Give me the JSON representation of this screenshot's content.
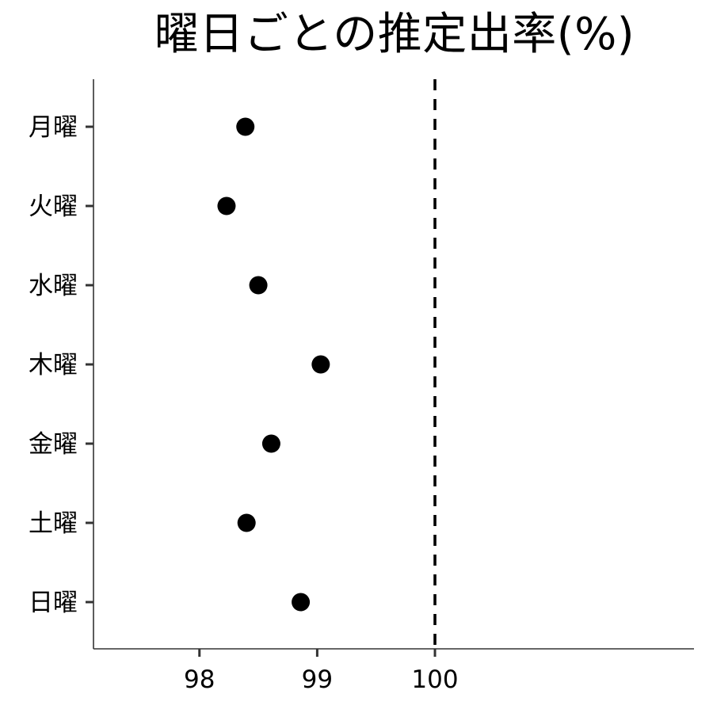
{
  "chart_data": {
    "type": "scatter",
    "title": "曜日ごとの推定出率(%)",
    "xlabel": "",
    "ylabel": "",
    "categories": [
      "月曜",
      "火曜",
      "水曜",
      "木曜",
      "金曜",
      "土曜",
      "日曜"
    ],
    "values": [
      98.39,
      98.23,
      98.5,
      99.03,
      98.61,
      98.4,
      98.86
    ],
    "xlim": [
      97.1,
      102.2
    ],
    "xticks": [
      98,
      99,
      100
    ],
    "reference_line": {
      "x": 100,
      "style": "dashed"
    },
    "grid": false,
    "legend": "none",
    "colors": {
      "points": "#000000",
      "axis": "#333333",
      "reference": "#000000"
    }
  }
}
